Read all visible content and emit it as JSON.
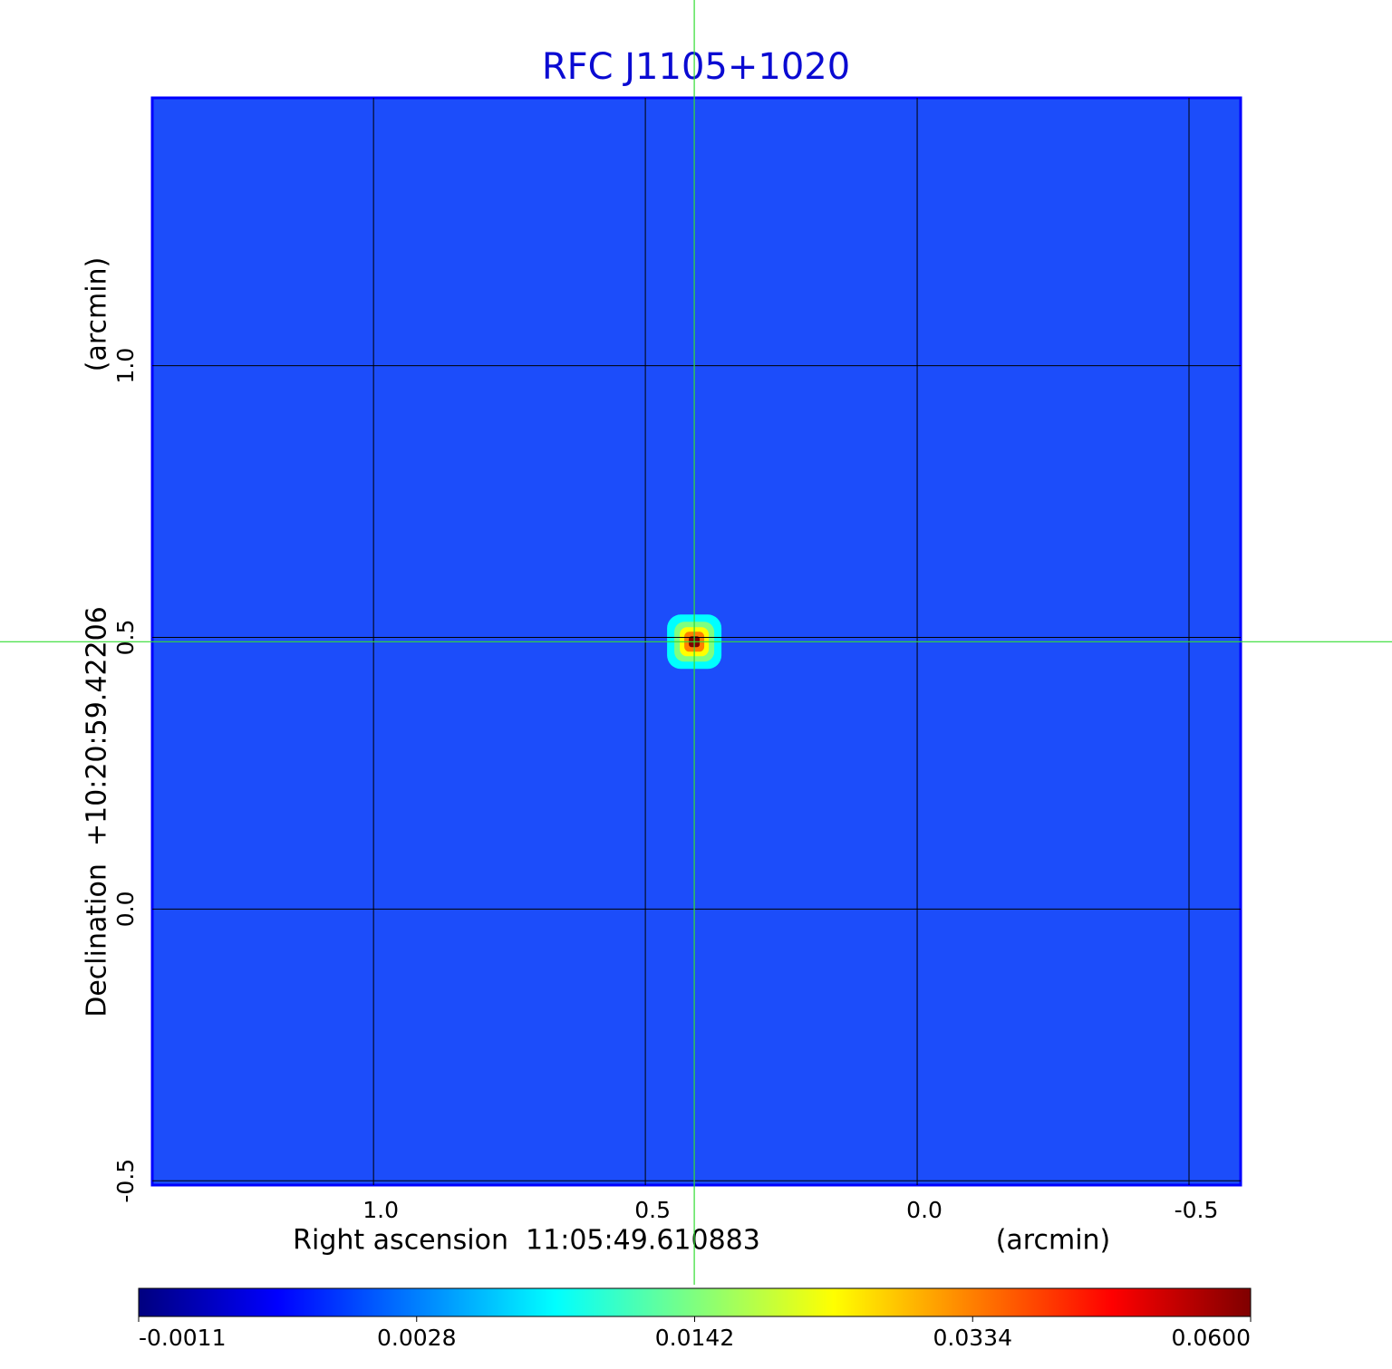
{
  "chart_data": {
    "type": "image",
    "title": "RFC J1105+1020",
    "title_color": "#0a0ad2",
    "x_label": "Right ascension  11:05:49.610883",
    "x_unit": "(arcmin)",
    "y_label": "Declination  +10:20:59.42206",
    "y_unit": "(arcmin)",
    "xlim": [
      1.407,
      -0.595
    ],
    "ylim": [
      -0.508,
      1.493
    ],
    "xticks": [
      {
        "value": 1.0,
        "label": "1.0"
      },
      0.5,
      {
        "value": 0.0,
        "label": "0.0"
      },
      -0.5
    ],
    "yticks": [
      -0.5,
      {
        "value": 0.0,
        "label": "0.0"
      },
      0.5,
      {
        "value": 1.0,
        "label": "1.0"
      }
    ],
    "grid": true,
    "grid_color": "#000000",
    "background_color": "#1c4dfa",
    "crosshair": {
      "x": 0.41,
      "y": 0.492,
      "color": "#33dd33"
    },
    "colormap": [
      "#00007f",
      "#0000ff",
      "#007fff",
      "#00ffff",
      "#7fff7f",
      "#ffff00",
      "#ff7f00",
      "#ff0000",
      "#7f0000"
    ],
    "colorbar_ticks": [
      -0.0011,
      0.0028,
      0.0142,
      0.0334,
      {
        "value": 0.06,
        "label": "0.0600"
      }
    ]
  }
}
